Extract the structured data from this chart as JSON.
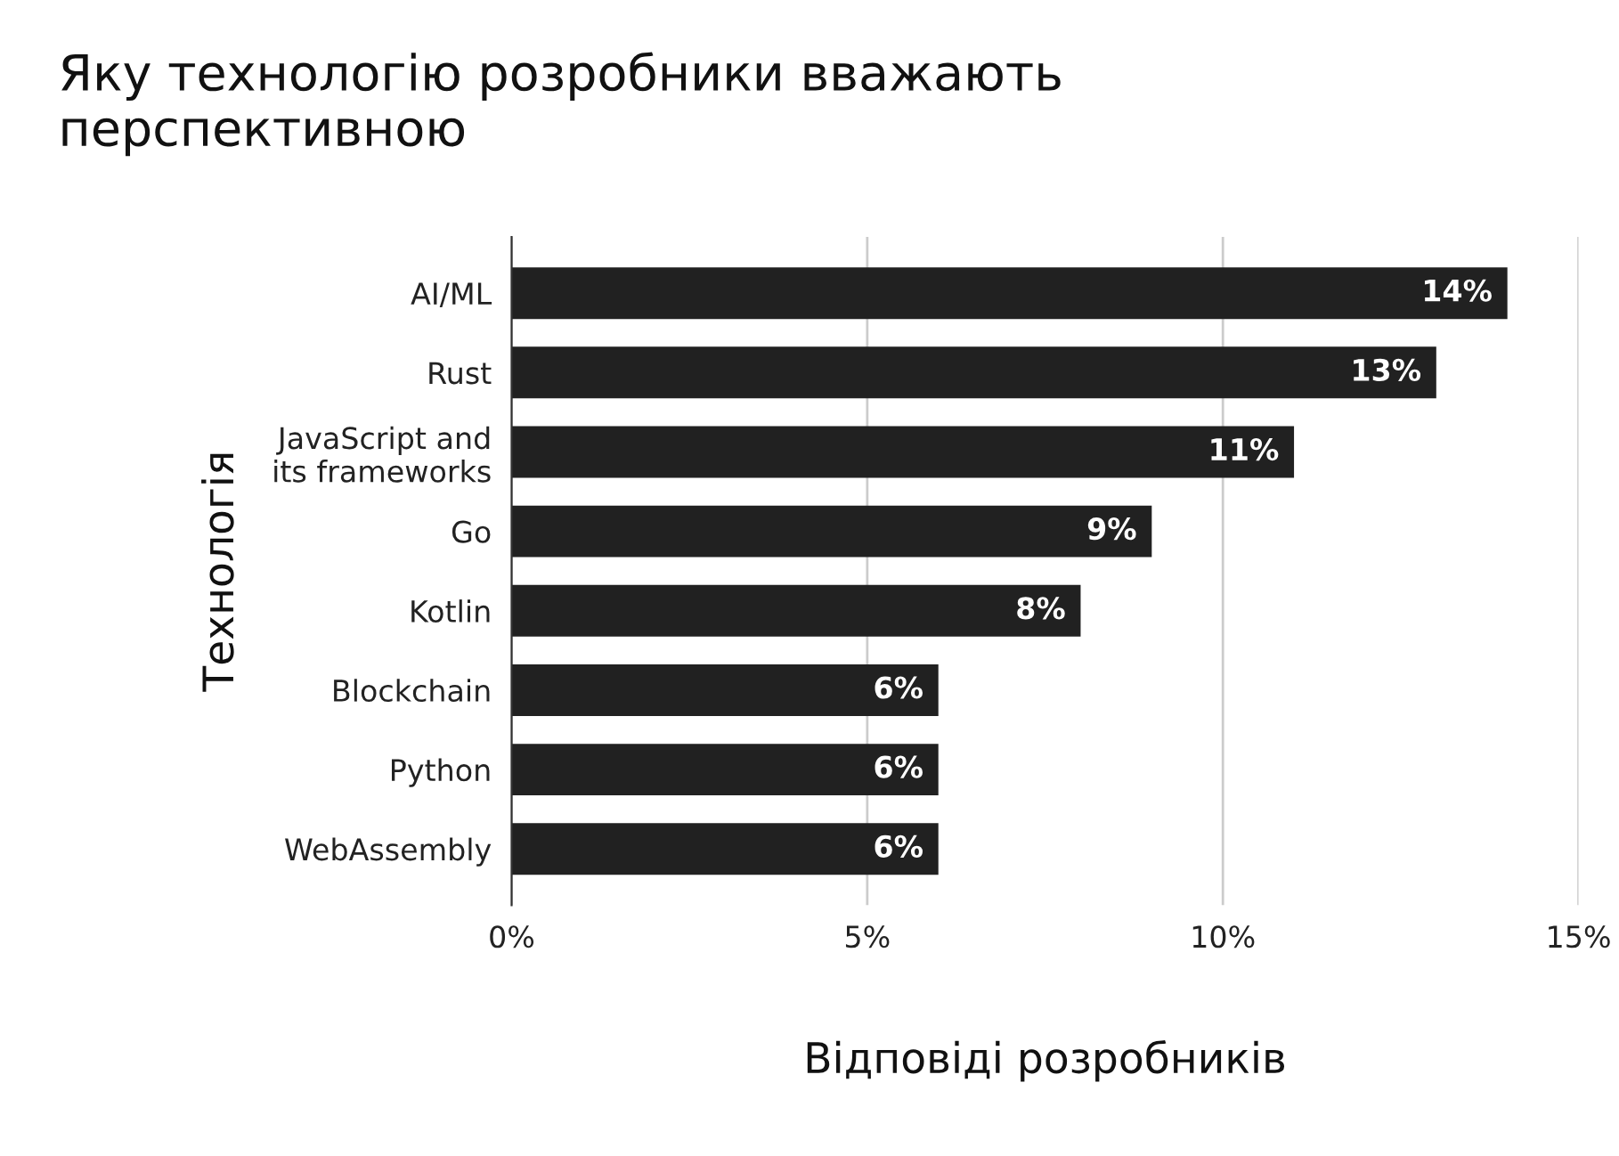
{
  "chart_data": {
    "type": "bar",
    "orientation": "horizontal",
    "title": "Яку технологію розробники вважають\nперспективною",
    "xlabel": "Відповіді розробників",
    "ylabel": "Технологія",
    "categories": [
      "AI/ML",
      "Rust",
      "JavaScript and\nits frameworks",
      "Go",
      "Kotlin",
      "Blockchain",
      "Python",
      "WebAssembly"
    ],
    "values": [
      14,
      13,
      11,
      9,
      8,
      6,
      6,
      6
    ],
    "value_labels": [
      "14%",
      "13%",
      "11%",
      "9%",
      "8%",
      "6%",
      "6%",
      "6%"
    ],
    "color": "#212121",
    "xlim": [
      0,
      15
    ],
    "xticks": [
      {
        "value": 0,
        "label": "0%"
      },
      {
        "value": 5,
        "label": "5%"
      },
      {
        "value": 10,
        "label": "10%"
      },
      {
        "value": 15,
        "label": "15%"
      }
    ],
    "grid": "x",
    "legend": false
  }
}
